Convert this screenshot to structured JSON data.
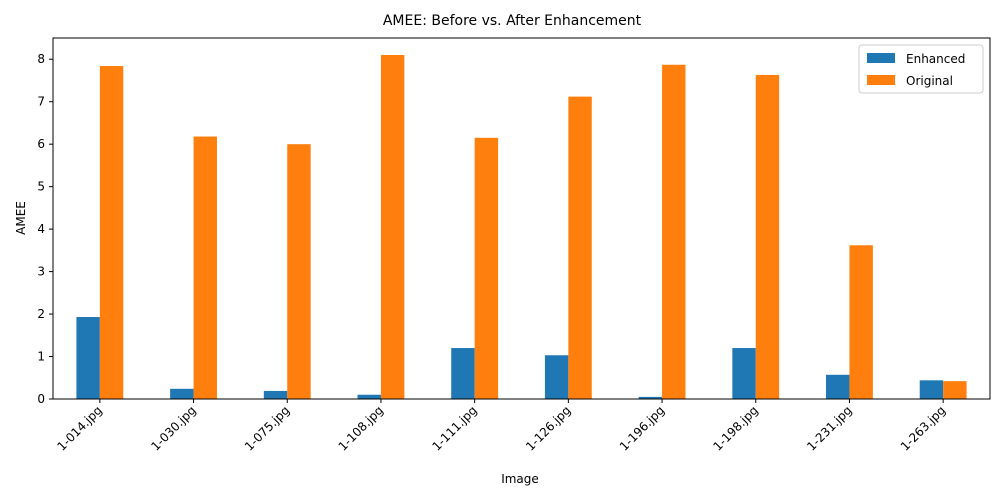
{
  "chart_data": {
    "type": "bar",
    "title": "AMEE: Before vs. After Enhancement",
    "xlabel": "Image",
    "ylabel": "AMEE",
    "categories": [
      "1-014.jpg",
      "1-030.jpg",
      "1-075.jpg",
      "1-108.jpg",
      "1-111.jpg",
      "1-126.jpg",
      "1-196.jpg",
      "1-198.jpg",
      "1-231.jpg",
      "1-263.jpg"
    ],
    "series": [
      {
        "name": "Enhanced",
        "color": "#1f77b4",
        "values": [
          1.93,
          0.24,
          0.19,
          0.1,
          1.2,
          1.03,
          0.05,
          1.2,
          0.57,
          0.44
        ]
      },
      {
        "name": "Original",
        "color": "#ff7f0e",
        "values": [
          7.84,
          6.18,
          6.0,
          8.1,
          6.15,
          7.12,
          7.87,
          7.63,
          3.62,
          0.42
        ]
      }
    ],
    "ylim": [
      0,
      8.5
    ],
    "yticks": [
      "0",
      "1",
      "2",
      "3",
      "4",
      "5",
      "6",
      "7",
      "8"
    ],
    "grid": false,
    "legend_position": "top-right"
  }
}
